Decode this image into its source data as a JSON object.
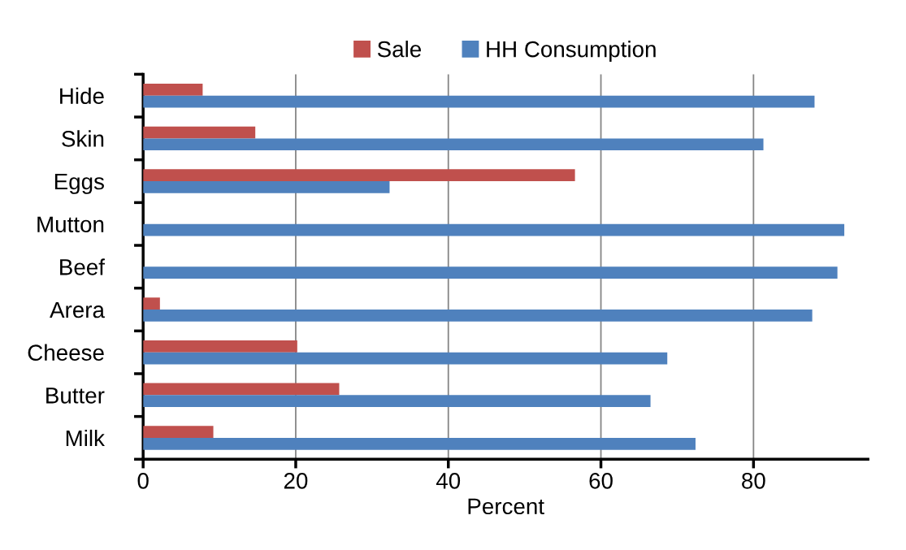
{
  "chart_data": {
    "type": "bar",
    "orientation": "horizontal",
    "xlabel": "Percent",
    "categories": [
      "Hide",
      "Skin",
      "Eggs",
      "Mutton",
      "Beef",
      "Arera",
      "Cheese",
      "Butter",
      "Milk"
    ],
    "series": [
      {
        "name": "Sale",
        "color": "#c0504d",
        "values": [
          7.8,
          14.7,
          56.6,
          0,
          0,
          2.2,
          20.2,
          25.7,
          9.2
        ]
      },
      {
        "name": "HH Consumption",
        "color": "#4f81bd",
        "values": [
          88.0,
          81.3,
          32.3,
          91.9,
          91.0,
          87.7,
          68.7,
          66.5,
          72.4
        ]
      }
    ],
    "xlim": [
      0,
      95
    ],
    "xticks": [
      0,
      20,
      40,
      60,
      80
    ],
    "grid": "x",
    "legend": "top"
  }
}
